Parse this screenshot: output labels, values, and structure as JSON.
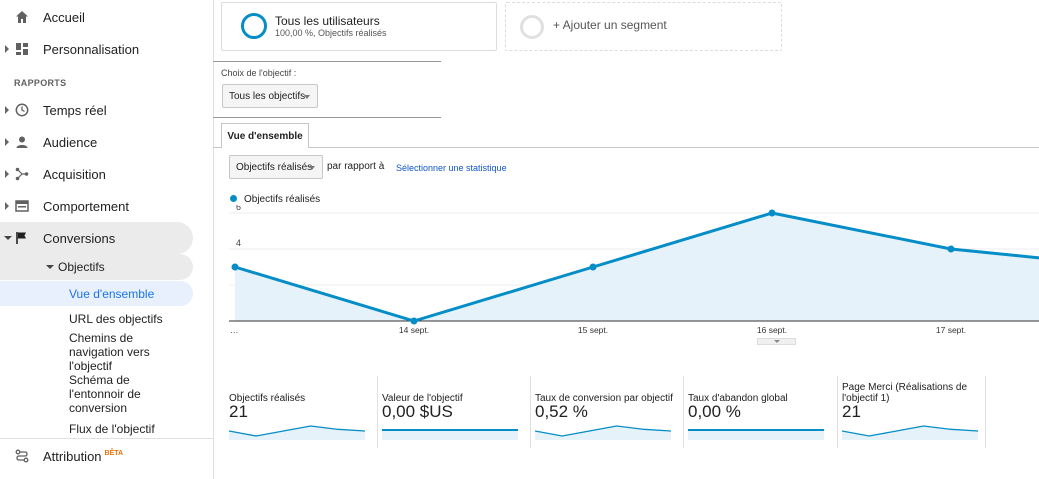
{
  "sidebar": {
    "top_items": [
      {
        "label": "Accueil",
        "icon": "home-icon"
      },
      {
        "label": "Personnalisation",
        "icon": "dashboard-grid-icon"
      }
    ],
    "section_title": "RAPPORTS",
    "report_items": [
      {
        "label": "Temps réel",
        "icon": "clock-icon"
      },
      {
        "label": "Audience",
        "icon": "person-icon"
      },
      {
        "label": "Acquisition",
        "icon": "acquisition-icon"
      },
      {
        "label": "Comportement",
        "icon": "behavior-icon"
      },
      {
        "label": "Conversions",
        "icon": "flag-icon"
      }
    ],
    "objectifs_label": "Objectifs",
    "objectifs_sub": [
      {
        "label": "Vue d'ensemble",
        "active": true
      },
      {
        "label": "URL des objectifs",
        "active": false
      },
      {
        "label": "Chemins de navigation vers l'objectif",
        "active": false
      },
      {
        "label": "Schéma de l'entonnoir de conversion",
        "active": false
      },
      {
        "label": "Flux de l'objectif",
        "active": false
      }
    ],
    "attribution_label": "Attribution",
    "attribution_badge": "BÊTA"
  },
  "segments": {
    "all_users_title": "Tous les utilisateurs",
    "all_users_sub": "100,00 %, Objectifs réalisés",
    "add_segment": "+ Ajouter un segment"
  },
  "goal_choice": {
    "label": "Choix de l'objectif :",
    "selected": "Tous les objectifs"
  },
  "tab_overview": "Vue d'ensemble",
  "metric_selector": {
    "selected": "Objectifs réalisés",
    "compare_text": "par rapport à",
    "select_stat_link": "Sélectionner une statistique"
  },
  "colors": {
    "accent": "#058dc7",
    "link": "#1155cc",
    "active_nav": "#1a73e8",
    "badge": "#e8710a"
  },
  "chart_data": {
    "type": "area",
    "series": [
      {
        "name": "Objectifs réalisés",
        "values": [
          3,
          0,
          3,
          6,
          4,
          3
        ]
      }
    ],
    "x": [
      "…",
      "14 sept.",
      "15 sept.",
      "16 sept.",
      "17 sept.",
      ""
    ],
    "x_tick_labels": [
      "…",
      "14 sept.",
      "15 sept.",
      "16 sept.",
      "17 sept."
    ],
    "y_ticks": [
      "2",
      "4",
      "6"
    ],
    "ylim": [
      0,
      6
    ],
    "legend": "top-left",
    "grid": true
  },
  "metrics": [
    {
      "name": "Objectifs réalisés",
      "value": "21",
      "spark": [
        3,
        0,
        3,
        6,
        4,
        3
      ]
    },
    {
      "name": "Valeur de l'objectif",
      "value": "0,00 $US",
      "spark": [
        0,
        0,
        0,
        0,
        0,
        0
      ]
    },
    {
      "name": "Taux de conversion par objectif",
      "value": "0,52 %",
      "spark": [
        3,
        0,
        3,
        6,
        4,
        3
      ]
    },
    {
      "name": "Taux d'abandon global",
      "value": "0,00 %",
      "spark": [
        0,
        0,
        0,
        0,
        0,
        0
      ]
    },
    {
      "name": "Page Merci (Réalisations de l'objectif 1)",
      "value": "21",
      "spark": [
        3,
        0,
        3,
        6,
        4,
        3
      ]
    }
  ]
}
